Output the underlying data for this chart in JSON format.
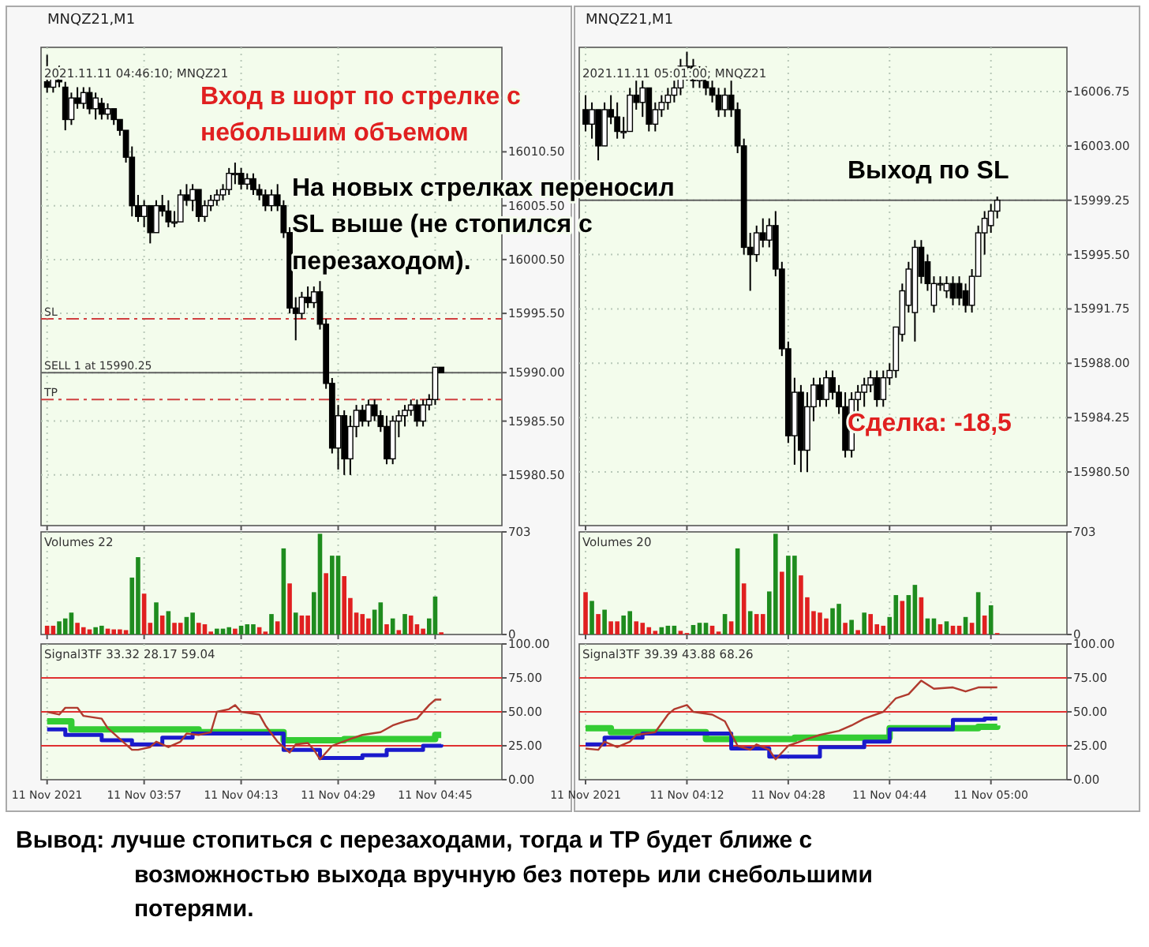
{
  "chart_data": [
    {
      "type": "candlestick",
      "title": "MNQZ21,M1",
      "subtitle": "2021.11.11 04:46:10; MNQZ21",
      "color": "#000000",
      "grid": true,
      "tick_labels": "y",
      "x": [
        "2021-11-11T03:41",
        "2021-11-11T03:42",
        "2021-11-11T03:43",
        "2021-11-11T03:44",
        "2021-11-11T03:45",
        "2021-11-11T03:46",
        "2021-11-11T03:47",
        "2021-11-11T03:48",
        "2021-11-11T03:49",
        "2021-11-11T03:50",
        "2021-11-11T03:51",
        "2021-11-11T03:52",
        "2021-11-11T03:53",
        "2021-11-11T03:54",
        "2021-11-11T03:55",
        "2021-11-11T03:56",
        "2021-11-11T03:57",
        "2021-11-11T03:58",
        "2021-11-11T03:59",
        "2021-11-11T04:00",
        "2021-11-11T04:01",
        "2021-11-11T04:02",
        "2021-11-11T04:03",
        "2021-11-11T04:04",
        "2021-11-11T04:05",
        "2021-11-11T04:06",
        "2021-11-11T04:07",
        "2021-11-11T04:08",
        "2021-11-11T04:09",
        "2021-11-11T04:10",
        "2021-11-11T04:11",
        "2021-11-11T04:12",
        "2021-11-11T04:13",
        "2021-11-11T04:14",
        "2021-11-11T04:15",
        "2021-11-11T04:16",
        "2021-11-11T04:17",
        "2021-11-11T04:18",
        "2021-11-11T04:19",
        "2021-11-11T04:20",
        "2021-11-11T04:21",
        "2021-11-11T04:22",
        "2021-11-11T04:23",
        "2021-11-11T04:24",
        "2021-11-11T04:25",
        "2021-11-11T04:26",
        "2021-11-11T04:27",
        "2021-11-11T04:28",
        "2021-11-11T04:29",
        "2021-11-11T04:30",
        "2021-11-11T04:31",
        "2021-11-11T04:32",
        "2021-11-11T04:33",
        "2021-11-11T04:34",
        "2021-11-11T04:35",
        "2021-11-11T04:36",
        "2021-11-11T04:37",
        "2021-11-11T04:38",
        "2021-11-11T04:39",
        "2021-11-11T04:40",
        "2021-11-11T04:41",
        "2021-11-11T04:42",
        "2021-11-11T04:43",
        "2021-11-11T04:44",
        "2021-11-11T04:45",
        "2021-11-11T04:46"
      ],
      "ohlc": [
        [
          16017,
          16019.5,
          16016,
          16016.5
        ],
        [
          16016.5,
          16018,
          16016,
          16017.5
        ],
        [
          16017.5,
          16018.5,
          16016.5,
          16017
        ],
        [
          16016.5,
          16017,
          16012.5,
          16013.5
        ],
        [
          16013.5,
          16016,
          16013,
          16015.5
        ],
        [
          16015.5,
          16016.5,
          16014.5,
          16015
        ],
        [
          16015,
          16016.5,
          16014.5,
          16016
        ],
        [
          16016,
          16016.5,
          16014,
          16014.5
        ],
        [
          16014.5,
          16016,
          16013.5,
          16015.5
        ],
        [
          16015,
          16015.5,
          16013.5,
          16014
        ],
        [
          16014,
          16015,
          16013.5,
          16014.5
        ],
        [
          16014.5,
          16014.5,
          16013,
          16013.5
        ],
        [
          16013.5,
          16013.5,
          16012,
          16012.5
        ],
        [
          16012.5,
          16012.5,
          16009.5,
          16010
        ],
        [
          16010,
          16011,
          16004.5,
          16005.5
        ],
        [
          16005.5,
          16006.5,
          16004,
          16004.5
        ],
        [
          16004.5,
          16006,
          16003.5,
          16005.5
        ],
        [
          16005.5,
          16005.5,
          16002,
          16003
        ],
        [
          16003,
          16006,
          16003,
          16005.5
        ],
        [
          16005.5,
          16006.5,
          16004.5,
          16005
        ],
        [
          16005,
          16006,
          16003.5,
          16004
        ],
        [
          16004,
          16005,
          16003.5,
          16004
        ],
        [
          16004,
          16007,
          16004,
          16006.5
        ],
        [
          16006.5,
          16007.5,
          16005.5,
          16006
        ],
        [
          16006,
          16007.5,
          16005,
          16007
        ],
        [
          16007,
          16007,
          16004,
          16004.5
        ],
        [
          16004.5,
          16006,
          16004,
          16005.5
        ],
        [
          16005.5,
          16006.5,
          16005,
          16006
        ],
        [
          16006,
          16007,
          16005.5,
          16006.5
        ],
        [
          16006.5,
          16007.5,
          16006,
          16007
        ],
        [
          16007,
          16009,
          16006.5,
          16008.5
        ],
        [
          16008.5,
          16009.5,
          16007.5,
          16008.5
        ],
        [
          16008.5,
          16009,
          16007,
          16007.5
        ],
        [
          16007.5,
          16008.5,
          16007,
          16008
        ],
        [
          16008,
          16008.5,
          16006.5,
          16007
        ],
        [
          16007,
          16007.5,
          16006,
          16006.5
        ],
        [
          16006.5,
          16007,
          16005,
          16005.5
        ],
        [
          16005.5,
          16007,
          16005,
          16006.5
        ],
        [
          16006.5,
          16007.5,
          16005,
          16005.5
        ],
        [
          16005.5,
          16006,
          16002.5,
          16003
        ],
        [
          16003,
          16003.5,
          15995.5,
          15996
        ],
        [
          15996,
          15997,
          15993,
          15995.5
        ],
        [
          15995.5,
          15997.5,
          15995,
          15997
        ],
        [
          15997,
          15998,
          15996,
          15996.5
        ],
        [
          15996.5,
          15998,
          15996,
          15997.5
        ],
        [
          15997.5,
          15998.5,
          15994,
          15994.5
        ],
        [
          15994.5,
          15995,
          15988.5,
          15989
        ],
        [
          15989,
          15989.5,
          15982.5,
          15983
        ],
        [
          15983,
          15987,
          15981,
          15986
        ],
        [
          15986,
          15986.5,
          15980.5,
          15982
        ],
        [
          15982,
          15986,
          15980.5,
          15985
        ],
        [
          15985,
          15987,
          15984,
          15986.5
        ],
        [
          15986.5,
          15987,
          15985,
          15985.5
        ],
        [
          15985.5,
          15987.5,
          15985,
          15987
        ],
        [
          15987,
          15987.5,
          15985.5,
          15986
        ],
        [
          15986,
          15986.5,
          15984.5,
          15985
        ],
        [
          15985,
          15986,
          15981.5,
          15982
        ],
        [
          15982,
          15986,
          15981.5,
          15985.5
        ],
        [
          15985.5,
          15986.5,
          15984,
          15986
        ],
        [
          15986,
          15987,
          15985,
          15986.5
        ],
        [
          15986.5,
          15987.5,
          15986,
          15987
        ],
        [
          15987,
          15987.5,
          15985,
          15985.5
        ],
        [
          15985.5,
          15987.5,
          15985,
          15987
        ],
        [
          15987,
          15988,
          15986.5,
          15987.5
        ],
        [
          15987.5,
          15990.5,
          15987,
          15990.5
        ],
        [
          15990.5,
          15990.5,
          15990,
          15990
        ]
      ],
      "xlim": [
        "2021-11-11T03:40",
        "2021-11-11T04:56"
      ],
      "xticks": [
        {
          "value": "2021-11-11T03:41",
          "label": null
        },
        {
          "value": "2021-11-11T03:57",
          "label": null
        },
        {
          "value": "2021-11-11T04:13",
          "label": null
        },
        {
          "value": "2021-11-11T04:29",
          "label": null
        },
        {
          "value": "2021-11-11T04:45",
          "label": null
        }
      ],
      "ylim": [
        15975.8,
        16020.2
      ],
      "yticks": [
        {
          "value": 15980.5,
          "label": "15980.50"
        },
        {
          "value": 15985.5,
          "label": "15985.50"
        },
        {
          "value": 15990,
          "label": "15990.00"
        },
        {
          "value": 15995.5,
          "label": "15995.50"
        },
        {
          "value": 16000.5,
          "label": "16000.50"
        },
        {
          "value": 16005.5,
          "label": "16005.50"
        },
        {
          "value": 16010.5,
          "label": "16010.50"
        }
      ],
      "ref_lines": [
        {
          "axis": "y",
          "value": 15995,
          "label": "SL",
          "color": "#d04040",
          "line_style": "dashed"
        },
        {
          "axis": "y",
          "value": 15990,
          "label": "SELL 1 at 15990.25",
          "color": "#606060",
          "line_style": "solid"
        },
        {
          "axis": "y",
          "value": 15987.5,
          "label": "TP",
          "color": "#d04040",
          "line_style": "dashed"
        }
      ],
      "annotations": [
        "Вход в шорт по стрелке с небольшим объемом",
        "На новых стрелках переносил SL выше (не стопился с перезаходом)."
      ]
    },
    {
      "type": "bar",
      "title": "Volumes 22",
      "grid": "x",
      "tick_labels": "y",
      "x": [
        "2021-11-11T03:41",
        "2021-11-11T03:42",
        "2021-11-11T03:43",
        "2021-11-11T03:44",
        "2021-11-11T03:45",
        "2021-11-11T03:46",
        "2021-11-11T03:47",
        "2021-11-11T03:48",
        "2021-11-11T03:49",
        "2021-11-11T03:50",
        "2021-11-11T03:51",
        "2021-11-11T03:52",
        "2021-11-11T03:53",
        "2021-11-11T03:54",
        "2021-11-11T03:55",
        "2021-11-11T03:56",
        "2021-11-11T03:57",
        "2021-11-11T03:58",
        "2021-11-11T03:59",
        "2021-11-11T04:00",
        "2021-11-11T04:01",
        "2021-11-11T04:02",
        "2021-11-11T04:03",
        "2021-11-11T04:04",
        "2021-11-11T04:05",
        "2021-11-11T04:06",
        "2021-11-11T04:07",
        "2021-11-11T04:08",
        "2021-11-11T04:09",
        "2021-11-11T04:10",
        "2021-11-11T04:11",
        "2021-11-11T04:12",
        "2021-11-11T04:13",
        "2021-11-11T04:14",
        "2021-11-11T04:15",
        "2021-11-11T04:16",
        "2021-11-11T04:17",
        "2021-11-11T04:18",
        "2021-11-11T04:19",
        "2021-11-11T04:20",
        "2021-11-11T04:21",
        "2021-11-11T04:22",
        "2021-11-11T04:23",
        "2021-11-11T04:24",
        "2021-11-11T04:25",
        "2021-11-11T04:26",
        "2021-11-11T04:27",
        "2021-11-11T04:28",
        "2021-11-11T04:29",
        "2021-11-11T04:30",
        "2021-11-11T04:31",
        "2021-11-11T04:32",
        "2021-11-11T04:33",
        "2021-11-11T04:34",
        "2021-11-11T04:35",
        "2021-11-11T04:36",
        "2021-11-11T04:37",
        "2021-11-11T04:38",
        "2021-11-11T04:39",
        "2021-11-11T04:40",
        "2021-11-11T04:41",
        "2021-11-11T04:42",
        "2021-11-11T04:43",
        "2021-11-11T04:44",
        "2021-11-11T04:45",
        "2021-11-11T04:46"
      ],
      "values": [
        60,
        60,
        90,
        110,
        150,
        80,
        50,
        35,
        50,
        60,
        40,
        35,
        35,
        30,
        390,
        530,
        280,
        80,
        220,
        130,
        160,
        80,
        80,
        120,
        150,
        80,
        70,
        20,
        40,
        40,
        50,
        40,
        60,
        70,
        70,
        50,
        20,
        140,
        90,
        590,
        350,
        150,
        130,
        130,
        290,
        690,
        420,
        540,
        540,
        400,
        250,
        150,
        140,
        110,
        170,
        220,
        70,
        110,
        30,
        140,
        130,
        70,
        40,
        110,
        260,
        15
      ],
      "colors": [
        "#e02020",
        "#e02020",
        "#1e8c1e",
        "#1e8c1e",
        "#1e8c1e",
        "#e02020",
        "#e02020",
        "#e02020",
        "#1e8c1e",
        "#1e8c1e",
        "#e02020",
        "#e02020",
        "#e02020",
        "#e02020",
        "#1e8c1e",
        "#1e8c1e",
        "#e02020",
        "#e02020",
        "#1e8c1e",
        "#e02020",
        "#1e8c1e",
        "#e02020",
        "#e02020",
        "#1e8c1e",
        "#1e8c1e",
        "#e02020",
        "#e02020",
        "#e02020",
        "#1e8c1e",
        "#1e8c1e",
        "#1e8c1e",
        "#e02020",
        "#1e8c1e",
        "#1e8c1e",
        "#1e8c1e",
        "#e02020",
        "#e02020",
        "#1e8c1e",
        "#e02020",
        "#1e8c1e",
        "#e02020",
        "#1e8c1e",
        "#e02020",
        "#e02020",
        "#1e8c1e",
        "#1e8c1e",
        "#e02020",
        "#1e8c1e",
        "#1e8c1e",
        "#e02020",
        "#e02020",
        "#e02020",
        "#e02020",
        "#e02020",
        "#1e8c1e",
        "#1e8c1e",
        "#e02020",
        "#1e8c1e",
        "#e02020",
        "#1e8c1e",
        "#e02020",
        "#e02020",
        "#e02020",
        "#1e8c1e",
        "#1e8c1e",
        "#e02020"
      ],
      "xlim": [
        "2021-11-11T03:40",
        "2021-11-11T04:56"
      ],
      "xticks": [
        {
          "value": "2021-11-11T03:41",
          "label": null
        },
        {
          "value": "2021-11-11T03:57",
          "label": null
        },
        {
          "value": "2021-11-11T04:13",
          "label": null
        },
        {
          "value": "2021-11-11T04:29",
          "label": null
        },
        {
          "value": "2021-11-11T04:45",
          "label": null
        }
      ],
      "ylim": [
        0,
        703
      ],
      "yticks": [
        {
          "value": 0,
          "label": "0"
        },
        {
          "value": 703,
          "label": "703"
        }
      ]
    },
    {
      "type": "line",
      "title": "Signal3TF 33.32 28.17 59.04",
      "grid": "x",
      "series": [
        {
          "type": "step",
          "color": "#33cc33",
          "x": [
            "2021-11-11T03:41",
            "2021-11-11T03:45",
            "2021-11-11T04:06",
            "2021-11-11T04:20",
            "2021-11-11T04:30",
            "2021-11-11T04:45",
            "2021-11-11T04:46"
          ],
          "values": [
            43,
            37,
            35,
            29,
            30,
            33,
            33
          ]
        },
        {
          "type": "step",
          "color": "#1a1acc",
          "x": [
            "2021-11-11T03:41",
            "2021-11-11T03:44",
            "2021-11-11T03:50",
            "2021-11-11T03:55",
            "2021-11-11T04:00",
            "2021-11-11T04:05",
            "2021-11-11T04:20",
            "2021-11-11T04:26",
            "2021-11-11T04:33",
            "2021-11-11T04:37",
            "2021-11-11T04:43",
            "2021-11-11T04:46"
          ],
          "values": [
            37,
            33,
            29,
            26,
            31,
            34,
            22,
            16,
            18,
            22,
            25,
            26
          ]
        },
        {
          "type": "line",
          "color": "#b03a2e",
          "x": [
            "2021-11-11T03:41",
            "2021-11-11T03:43",
            "2021-11-11T03:44",
            "2021-11-11T03:46",
            "2021-11-11T03:47",
            "2021-11-11T03:50",
            "2021-11-11T03:51",
            "2021-11-11T03:53",
            "2021-11-11T03:55",
            "2021-11-11T03:56",
            "2021-11-11T03:58",
            "2021-11-11T03:59",
            "2021-11-11T04:01",
            "2021-11-11T04:03",
            "2021-11-11T04:04",
            "2021-11-11T04:06",
            "2021-11-11T04:08",
            "2021-11-11T04:09",
            "2021-11-11T04:11",
            "2021-11-11T04:12",
            "2021-11-11T04:13",
            "2021-11-11T04:16",
            "2021-11-11T04:17",
            "2021-11-11T04:19",
            "2021-11-11T04:21",
            "2021-11-11T04:22",
            "2021-11-11T04:24",
            "2021-11-11T04:25",
            "2021-11-11T04:26",
            "2021-11-11T04:28",
            "2021-11-11T04:31",
            "2021-11-11T04:33",
            "2021-11-11T04:36",
            "2021-11-11T04:38",
            "2021-11-11T04:40",
            "2021-11-11T04:42",
            "2021-11-11T04:44",
            "2021-11-11T04:45",
            "2021-11-11T04:46"
          ],
          "values": [
            50,
            48,
            53,
            53,
            47,
            45,
            38,
            30,
            22,
            22,
            24,
            28,
            24,
            28,
            34,
            33,
            35,
            50,
            52,
            55,
            50,
            48,
            40,
            28,
            20,
            26,
            27,
            22,
            15,
            25,
            30,
            33,
            35,
            40,
            43,
            45,
            55,
            59,
            59
          ]
        }
      ],
      "xlim": [
        "2021-11-11T03:40",
        "2021-11-11T04:56"
      ],
      "xticks": [
        {
          "value": "2021-11-11T03:41",
          "label": "11 Nov 2021"
        },
        {
          "value": "2021-11-11T03:57",
          "label": "11 Nov 03:57"
        },
        {
          "value": "2021-11-11T04:13",
          "label": "11 Nov 04:13"
        },
        {
          "value": "2021-11-11T04:29",
          "label": "11 Nov 04:29"
        },
        {
          "value": "2021-11-11T04:45",
          "label": "11 Nov 04:45"
        }
      ],
      "ylim": [
        0,
        100
      ],
      "yticks": [
        {
          "value": 0,
          "label": "0.00"
        },
        {
          "value": 25,
          "label": "25.00"
        },
        {
          "value": 50,
          "label": "50.00"
        },
        {
          "value": 75,
          "label": "75.00"
        },
        {
          "value": 100,
          "label": "100.00"
        }
      ],
      "ref_lines": [
        {
          "axis": "y",
          "value": 25,
          "color": "#e03030"
        },
        {
          "axis": "y",
          "value": 50,
          "color": "#e03030"
        },
        {
          "axis": "y",
          "value": 75,
          "color": "#e03030"
        }
      ],
      "annotations": [
        "Вывод: лучше стопиться с перезаходами, тогда и TP будет ближе с возможностью выхода вручную без потерь или снебольшими потерями."
      ]
    },
    {
      "type": "candlestick",
      "title": "MNQZ21,M1",
      "subtitle": "2021.11.11 05:01:00; MNQZ21",
      "color": "#000000",
      "grid": true,
      "tick_labels": "y",
      "x": [
        "2021-11-11T03:56",
        "2021-11-11T03:57",
        "2021-11-11T03:58",
        "2021-11-11T03:59",
        "2021-11-11T04:00",
        "2021-11-11T04:01",
        "2021-11-11T04:02",
        "2021-11-11T04:03",
        "2021-11-11T04:04",
        "2021-11-11T04:05",
        "2021-11-11T04:06",
        "2021-11-11T04:07",
        "2021-11-11T04:08",
        "2021-11-11T04:09",
        "2021-11-11T04:10",
        "2021-11-11T04:11",
        "2021-11-11T04:12",
        "2021-11-11T04:13",
        "2021-11-11T04:14",
        "2021-11-11T04:15",
        "2021-11-11T04:16",
        "2021-11-11T04:17",
        "2021-11-11T04:18",
        "2021-11-11T04:19",
        "2021-11-11T04:20",
        "2021-11-11T04:21",
        "2021-11-11T04:22",
        "2021-11-11T04:23",
        "2021-11-11T04:24",
        "2021-11-11T04:25",
        "2021-11-11T04:26",
        "2021-11-11T04:27",
        "2021-11-11T04:28",
        "2021-11-11T04:29",
        "2021-11-11T04:30",
        "2021-11-11T04:31",
        "2021-11-11T04:32",
        "2021-11-11T04:33",
        "2021-11-11T04:34",
        "2021-11-11T04:35",
        "2021-11-11T04:36",
        "2021-11-11T04:37",
        "2021-11-11T04:38",
        "2021-11-11T04:39",
        "2021-11-11T04:40",
        "2021-11-11T04:41",
        "2021-11-11T04:42",
        "2021-11-11T04:43",
        "2021-11-11T04:44",
        "2021-11-11T04:45",
        "2021-11-11T04:46",
        "2021-11-11T04:47",
        "2021-11-11T04:48",
        "2021-11-11T04:49",
        "2021-11-11T04:50",
        "2021-11-11T04:51",
        "2021-11-11T04:52",
        "2021-11-11T04:53",
        "2021-11-11T04:54",
        "2021-11-11T04:55",
        "2021-11-11T04:56",
        "2021-11-11T04:57",
        "2021-11-11T04:58",
        "2021-11-11T04:59",
        "2021-11-11T05:00",
        "2021-11-11T05:01"
      ],
      "ohlc": [
        [
          16005.5,
          16006.5,
          16004,
          16004.5
        ],
        [
          16004.5,
          16006,
          16003.5,
          16005.5
        ],
        [
          16005.5,
          16005.5,
          16002,
          16003
        ],
        [
          16003,
          16006,
          16003,
          16005.5
        ],
        [
          16005.5,
          16006.5,
          16004.5,
          16005
        ],
        [
          16005,
          16006,
          16003.5,
          16004
        ],
        [
          16004,
          16005,
          16003.5,
          16004
        ],
        [
          16004,
          16007,
          16004,
          16006.5
        ],
        [
          16006.5,
          16007.5,
          16005.5,
          16006
        ],
        [
          16006,
          16007.5,
          16005,
          16007
        ],
        [
          16007,
          16007,
          16004,
          16004.5
        ],
        [
          16004.5,
          16006,
          16004,
          16005.5
        ],
        [
          16005.5,
          16006.5,
          16005,
          16006
        ],
        [
          16006,
          16007,
          16005.5,
          16006.5
        ],
        [
          16006.5,
          16007.5,
          16006,
          16007
        ],
        [
          16007,
          16009,
          16006.5,
          16008.5
        ],
        [
          16008.5,
          16009.5,
          16007.5,
          16008.5
        ],
        [
          16008.5,
          16009,
          16007,
          16007.5
        ],
        [
          16007.5,
          16008.5,
          16007,
          16008
        ],
        [
          16008,
          16008.5,
          16006.5,
          16007
        ],
        [
          16007,
          16007.5,
          16006,
          16006.5
        ],
        [
          16006.5,
          16007,
          16005,
          16005.5
        ],
        [
          16005.5,
          16007,
          16005,
          16006.5
        ],
        [
          16006.5,
          16007.5,
          16005,
          16005.5
        ],
        [
          16005.5,
          16006,
          16002.5,
          16003
        ],
        [
          16003,
          16003.5,
          15995.5,
          15996
        ],
        [
          15996,
          15997,
          15993,
          15995.5
        ],
        [
          15995.5,
          15997.5,
          15995,
          15997
        ],
        [
          15997,
          15998,
          15996,
          15996.5
        ],
        [
          15996.5,
          15998,
          15996,
          15997.5
        ],
        [
          15997.5,
          15998.5,
          15994,
          15994.5
        ],
        [
          15994.5,
          15995,
          15988.5,
          15989
        ],
        [
          15989,
          15989.5,
          15982.5,
          15983
        ],
        [
          15983,
          15987,
          15981,
          15986
        ],
        [
          15986,
          15986.5,
          15980.5,
          15982
        ],
        [
          15982,
          15986,
          15980.5,
          15985
        ],
        [
          15985,
          15987,
          15984,
          15986.5
        ],
        [
          15986.5,
          15987,
          15985,
          15985.5
        ],
        [
          15985.5,
          15987.5,
          15985,
          15987
        ],
        [
          15987,
          15987.5,
          15985.5,
          15986
        ],
        [
          15986,
          15986.5,
          15984.5,
          15985
        ],
        [
          15985,
          15986,
          15981.5,
          15982
        ],
        [
          15982,
          15986,
          15981.5,
          15985.5
        ],
        [
          15985.5,
          15986.5,
          15984,
          15986
        ],
        [
          15986,
          15987,
          15985,
          15986.5
        ],
        [
          15986.5,
          15987.5,
          15986,
          15987
        ],
        [
          15987,
          15987.5,
          15985,
          15985.5
        ],
        [
          15985.5,
          15987.5,
          15985,
          15987
        ],
        [
          15987,
          15988,
          15986.5,
          15987.5
        ],
        [
          15987.5,
          15990.5,
          15987,
          15990.5
        ],
        [
          15990,
          15993.5,
          15989.5,
          15993
        ],
        [
          15992,
          15995,
          15991.5,
          15994.5
        ],
        [
          15991.5,
          15996.5,
          15989.5,
          15996
        ],
        [
          15996,
          15996.5,
          15993.5,
          15994
        ],
        [
          15995,
          15995.5,
          15993,
          15993.5
        ],
        [
          15992,
          15994,
          15991.5,
          15993.5
        ],
        [
          15993.5,
          15994,
          15993,
          15993.5
        ],
        [
          15993,
          15994,
          15992.5,
          15993.5
        ],
        [
          15993.5,
          15994,
          15992,
          15992.5
        ],
        [
          15993.5,
          15994,
          15992,
          15992.5
        ],
        [
          15993,
          15993.5,
          15991.5,
          15992
        ],
        [
          15992,
          15994.5,
          15991.5,
          15994
        ],
        [
          15994,
          15997.5,
          15994,
          15997
        ],
        [
          15997,
          15998.5,
          15995.5,
          15998
        ],
        [
          15997.5,
          15999,
          15997,
          15998.5
        ],
        [
          15998.5,
          15999.5,
          15998,
          15999.25
        ]
      ],
      "xlim": [
        "2021-11-11T03:55",
        "2021-11-11T05:12"
      ],
      "xticks": [
        {
          "value": "2021-11-11T03:56",
          "label": null
        },
        {
          "value": "2021-11-11T04:12",
          "label": null
        },
        {
          "value": "2021-11-11T04:28",
          "label": null
        },
        {
          "value": "2021-11-11T04:44",
          "label": null
        },
        {
          "value": "2021-11-11T05:00",
          "label": null
        }
      ],
      "ylim": [
        15976.8,
        16009.8
      ],
      "yticks": [
        {
          "value": 15980.5,
          "label": "15980.50"
        },
        {
          "value": 15984.25,
          "label": "15984.25"
        },
        {
          "value": 15988,
          "label": "15988.00"
        },
        {
          "value": 15991.75,
          "label": "15991.75"
        },
        {
          "value": 15995.5,
          "label": "15995.50"
        },
        {
          "value": 15999.25,
          "label": "15999.25"
        },
        {
          "value": 16003,
          "label": "16003.00"
        },
        {
          "value": 16006.75,
          "label": "16006.75"
        }
      ],
      "ref_lines": [
        {
          "axis": "y",
          "value": 15999.25,
          "color": "#606060",
          "line_style": "solid"
        }
      ],
      "annotations": [
        "Выход по SL",
        "Сделка: -18,5"
      ]
    },
    {
      "type": "bar",
      "title": "Volumes 20",
      "grid": "x",
      "tick_labels": "y",
      "x": [
        "2021-11-11T03:56",
        "2021-11-11T03:57",
        "2021-11-11T03:58",
        "2021-11-11T03:59",
        "2021-11-11T04:00",
        "2021-11-11T04:01",
        "2021-11-11T04:02",
        "2021-11-11T04:03",
        "2021-11-11T04:04",
        "2021-11-11T04:05",
        "2021-11-11T04:06",
        "2021-11-11T04:07",
        "2021-11-11T04:08",
        "2021-11-11T04:09",
        "2021-11-11T04:10",
        "2021-11-11T04:11",
        "2021-11-11T04:12",
        "2021-11-11T04:13",
        "2021-11-11T04:14",
        "2021-11-11T04:15",
        "2021-11-11T04:16",
        "2021-11-11T04:17",
        "2021-11-11T04:18",
        "2021-11-11T04:19",
        "2021-11-11T04:20",
        "2021-11-11T04:21",
        "2021-11-11T04:22",
        "2021-11-11T04:23",
        "2021-11-11T04:24",
        "2021-11-11T04:25",
        "2021-11-11T04:26",
        "2021-11-11T04:27",
        "2021-11-11T04:28",
        "2021-11-11T04:29",
        "2021-11-11T04:30",
        "2021-11-11T04:31",
        "2021-11-11T04:32",
        "2021-11-11T04:33",
        "2021-11-11T04:34",
        "2021-11-11T04:35",
        "2021-11-11T04:36",
        "2021-11-11T04:37",
        "2021-11-11T04:38",
        "2021-11-11T04:39",
        "2021-11-11T04:40",
        "2021-11-11T04:41",
        "2021-11-11T04:42",
        "2021-11-11T04:43",
        "2021-11-11T04:44",
        "2021-11-11T04:45",
        "2021-11-11T04:46",
        "2021-11-11T04:47",
        "2021-11-11T04:48",
        "2021-11-11T04:49",
        "2021-11-11T04:50",
        "2021-11-11T04:51",
        "2021-11-11T04:52",
        "2021-11-11T04:53",
        "2021-11-11T04:54",
        "2021-11-11T04:55",
        "2021-11-11T04:56",
        "2021-11-11T04:57",
        "2021-11-11T04:58",
        "2021-11-11T04:59",
        "2021-11-11T05:00",
        "2021-11-11T05:01"
      ],
      "values": [
        290,
        230,
        140,
        170,
        90,
        90,
        130,
        160,
        90,
        80,
        50,
        25,
        50,
        60,
        60,
        25,
        10,
        65,
        80,
        80,
        60,
        20,
        140,
        90,
        590,
        350,
        160,
        140,
        140,
        295,
        690,
        430,
        540,
        540,
        405,
        255,
        160,
        150,
        110,
        180,
        210,
        80,
        100,
        30,
        150,
        140,
        70,
        60,
        120,
        270,
        230,
        270,
        340,
        255,
        110,
        110,
        70,
        90,
        60,
        60,
        120,
        80,
        290,
        130,
        200,
        10
      ],
      "colors": [
        "#e02020",
        "#1e8c1e",
        "#e02020",
        "#1e8c1e",
        "#e02020",
        "#e02020",
        "#1e8c1e",
        "#1e8c1e",
        "#e02020",
        "#e02020",
        "#e02020",
        "#e02020",
        "#1e8c1e",
        "#1e8c1e",
        "#1e8c1e",
        "#e02020",
        "#e02020",
        "#1e8c1e",
        "#1e8c1e",
        "#1e8c1e",
        "#e02020",
        "#e02020",
        "#1e8c1e",
        "#e02020",
        "#1e8c1e",
        "#e02020",
        "#1e8c1e",
        "#e02020",
        "#e02020",
        "#1e8c1e",
        "#1e8c1e",
        "#e02020",
        "#1e8c1e",
        "#1e8c1e",
        "#e02020",
        "#e02020",
        "#e02020",
        "#e02020",
        "#e02020",
        "#1e8c1e",
        "#1e8c1e",
        "#e02020",
        "#1e8c1e",
        "#e02020",
        "#1e8c1e",
        "#e02020",
        "#e02020",
        "#e02020",
        "#1e8c1e",
        "#1e8c1e",
        "#e02020",
        "#1e8c1e",
        "#1e8c1e",
        "#e02020",
        "#1e8c1e",
        "#1e8c1e",
        "#e02020",
        "#1e8c1e",
        "#e02020",
        "#e02020",
        "#1e8c1e",
        "#e02020",
        "#1e8c1e",
        "#e02020",
        "#1e8c1e",
        "#e02020"
      ],
      "xlim": [
        "2021-11-11T03:55",
        "2021-11-11T05:12"
      ],
      "xticks": [
        {
          "value": "2021-11-11T03:56",
          "label": null
        },
        {
          "value": "2021-11-11T04:12",
          "label": null
        },
        {
          "value": "2021-11-11T04:28",
          "label": null
        },
        {
          "value": "2021-11-11T04:44",
          "label": null
        },
        {
          "value": "2021-11-11T05:00",
          "label": null
        }
      ],
      "ylim": [
        0,
        703
      ],
      "yticks": [
        {
          "value": 0,
          "label": "0"
        },
        {
          "value": 703,
          "label": "703"
        }
      ]
    },
    {
      "type": "line",
      "title": "Signal3TF 39.39 43.88 68.26",
      "grid": "x",
      "series": [
        {
          "type": "step",
          "color": "#33cc33",
          "x": [
            "2021-11-11T03:56",
            "2021-11-11T04:00",
            "2021-11-11T04:15",
            "2021-11-11T04:29",
            "2021-11-11T04:44",
            "2021-11-11T04:58",
            "2021-11-11T05:01"
          ],
          "values": [
            38,
            35,
            30,
            31,
            38,
            39,
            40
          ]
        },
        {
          "type": "step",
          "color": "#1a1acc",
          "x": [
            "2021-11-11T03:56",
            "2021-11-11T03:59",
            "2021-11-11T04:05",
            "2021-11-11T04:19",
            "2021-11-11T04:25",
            "2021-11-11T04:33",
            "2021-11-11T04:40",
            "2021-11-11T04:44",
            "2021-11-11T04:54",
            "2021-11-11T04:59",
            "2021-11-11T05:01"
          ],
          "values": [
            26,
            31,
            34,
            23,
            17,
            24,
            28,
            37,
            44,
            45,
            45
          ]
        },
        {
          "type": "line",
          "color": "#b03a2e",
          "x": [
            "2021-11-11T03:56",
            "2021-11-11T03:58",
            "2021-11-11T03:59",
            "2021-11-11T04:01",
            "2021-11-11T04:03",
            "2021-11-11T04:04",
            "2021-11-11T04:07",
            "2021-11-11T04:09",
            "2021-11-11T04:10",
            "2021-11-11T04:12",
            "2021-11-11T04:13",
            "2021-11-11T04:16",
            "2021-11-11T04:18",
            "2021-11-11T04:20",
            "2021-11-11T04:22",
            "2021-11-11T04:23",
            "2021-11-11T04:25",
            "2021-11-11T04:26",
            "2021-11-11T04:28",
            "2021-11-11T04:31",
            "2021-11-11T04:33",
            "2021-11-11T04:36",
            "2021-11-11T04:38",
            "2021-11-11T04:40",
            "2021-11-11T04:43",
            "2021-11-11T04:45",
            "2021-11-11T04:47",
            "2021-11-11T04:49",
            "2021-11-11T04:51",
            "2021-11-11T04:54",
            "2021-11-11T04:56",
            "2021-11-11T04:58",
            "2021-11-11T05:01"
          ],
          "values": [
            23,
            22,
            28,
            24,
            28,
            33,
            35,
            48,
            52,
            55,
            50,
            48,
            43,
            25,
            22,
            26,
            22,
            15,
            25,
            30,
            33,
            36,
            40,
            45,
            50,
            60,
            63,
            73,
            67,
            68,
            65,
            68,
            68
          ]
        }
      ],
      "xlim": [
        "2021-11-11T03:55",
        "2021-11-11T05:12"
      ],
      "xticks": [
        {
          "value": "2021-11-11T03:56",
          "label": "11 Nov 2021"
        },
        {
          "value": "2021-11-11T04:12",
          "label": "11 Nov 04:12"
        },
        {
          "value": "2021-11-11T04:28",
          "label": "11 Nov 04:28"
        },
        {
          "value": "2021-11-11T04:44",
          "label": "11 Nov 04:44"
        },
        {
          "value": "2021-11-11T05:00",
          "label": "11 Nov 05:00"
        }
      ],
      "ylim": [
        0,
        100
      ],
      "yticks": [
        {
          "value": 0,
          "label": "0.00"
        },
        {
          "value": 25,
          "label": "25.00"
        },
        {
          "value": 50,
          "label": "50.00"
        },
        {
          "value": 75,
          "label": "75.00"
        },
        {
          "value": 100,
          "label": "100.00"
        }
      ],
      "ref_lines": [
        {
          "axis": "y",
          "value": 25,
          "color": "#e03030"
        },
        {
          "axis": "y",
          "value": 50,
          "color": "#e03030"
        },
        {
          "axis": "y",
          "value": 75,
          "color": "#e03030"
        }
      ]
    }
  ]
}
